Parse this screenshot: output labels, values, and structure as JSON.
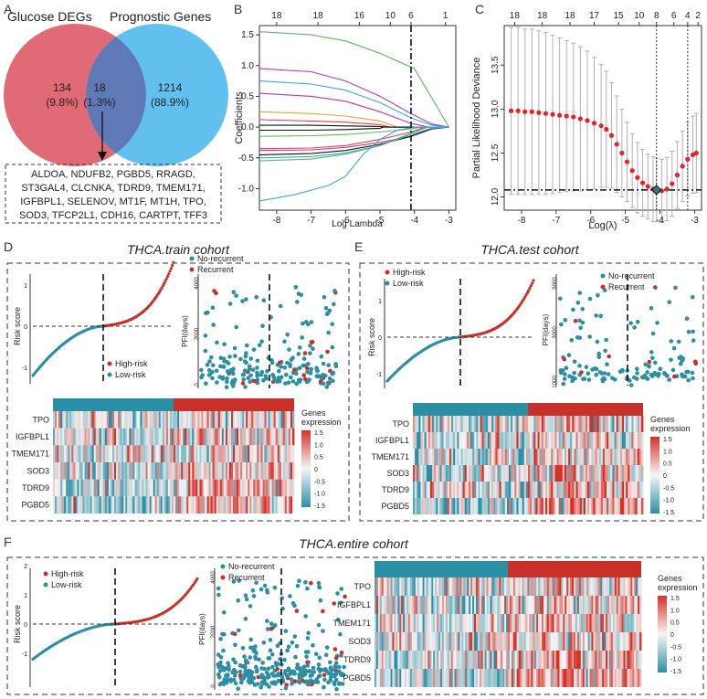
{
  "panel_labels": {
    "a": "A",
    "b": "B",
    "c": "C",
    "d": "D",
    "e": "E",
    "f": "F"
  },
  "venn": {
    "left_title": "Glucose DEGs",
    "right_title": "Prognostic Genes",
    "left_count": "134",
    "left_pct": "(9.8%)",
    "mid_count": "18",
    "mid_pct": "(1.3%)",
    "right_count": "1214",
    "right_pct": "(88.9%)",
    "genes": [
      "ALDOA, NDUFB2, PGBD5, RRAGD,",
      "ST3GAL4, CLCNKA, TDRD9, TMEM171,",
      "IGFBPL1, SELENOV, MT1F, MT1H, TPO,",
      "SOD3, TFCP2L1, CDH16, CARTPT, TFF3"
    ],
    "colors": {
      "left": "#e06a76",
      "right": "#62c0ef",
      "overlap": "#5e79b5"
    }
  },
  "chart_data": [
    {
      "panel": "B",
      "type": "line",
      "title": "",
      "xlabel": "Log Lambda",
      "ylabel": "Coefficients",
      "xlim": [
        -8.5,
        -2.8
      ],
      "ylim": [
        -1.35,
        1.65
      ],
      "xticks": [
        "-8",
        "-7",
        "-6",
        "-5",
        "-4",
        "-3"
      ],
      "xtick_values": [
        -8,
        -7,
        -6,
        -5,
        -4,
        -3
      ],
      "yticks": [
        "-1.0",
        "-0.5",
        "0.0",
        "0.5",
        "1.0",
        "1.5"
      ],
      "ytick_values": [
        -1,
        -0.5,
        0,
        0.5,
        1,
        1.5
      ],
      "top_ticks": [
        "18",
        "18",
        "16",
        "10",
        "6",
        "1"
      ],
      "top_tick_values": [
        -8,
        -6.8,
        -5.6,
        -4.7,
        -4.1,
        -3.1
      ],
      "vline": -4.1,
      "series": [
        {
          "color": "#5cb85c",
          "values": [
            [
              -8.5,
              1.55
            ],
            [
              -7,
              1.5
            ],
            [
              -6,
              1.4
            ],
            [
              -5,
              1.2
            ],
            [
              -4,
              0.95
            ],
            [
              -3,
              0
            ]
          ]
        },
        {
          "color": "#c0399b",
          "values": [
            [
              -8.5,
              0.95
            ],
            [
              -7,
              0.9
            ],
            [
              -6,
              0.75
            ],
            [
              -5,
              0.5
            ],
            [
              -4.1,
              0.22
            ],
            [
              -3.5,
              0.05
            ],
            [
              -3,
              0
            ]
          ]
        },
        {
          "color": "#3aa7d6",
          "values": [
            [
              -8.5,
              0.75
            ],
            [
              -7,
              0.7
            ],
            [
              -6,
              0.6
            ],
            [
              -5,
              0.4
            ],
            [
              -4.1,
              0.15
            ],
            [
              -3.5,
              0.03
            ],
            [
              -3,
              0
            ]
          ]
        },
        {
          "color": "#c0399b",
          "values": [
            [
              -8.5,
              0.55
            ],
            [
              -7,
              0.5
            ],
            [
              -6,
              0.42
            ],
            [
              -5,
              0.25
            ],
            [
              -4.1,
              0.06
            ],
            [
              -3.6,
              0
            ],
            [
              -3,
              0
            ]
          ]
        },
        {
          "color": "#e8a33d",
          "values": [
            [
              -8.5,
              0.25
            ],
            [
              -7,
              0.22
            ],
            [
              -6,
              0.18
            ],
            [
              -5,
              0.1
            ],
            [
              -4.5,
              0
            ],
            [
              -3,
              0
            ]
          ]
        },
        {
          "color": "#e04050",
          "values": [
            [
              -8.5,
              0.12
            ],
            [
              -7,
              0.1
            ],
            [
              -6,
              0.08
            ],
            [
              -5,
              0.04
            ],
            [
              -4.7,
              0
            ],
            [
              -3,
              0
            ]
          ]
        },
        {
          "color": "#111111",
          "values": [
            [
              -8.5,
              0.03
            ],
            [
              -7,
              0.03
            ],
            [
              -6,
              0.02
            ],
            [
              -5,
              0.01
            ],
            [
              -4.8,
              0
            ],
            [
              -3,
              0
            ]
          ]
        },
        {
          "color": "#111111",
          "values": [
            [
              -8.5,
              -0.05
            ],
            [
              -7,
              -0.05
            ],
            [
              -6,
              -0.04
            ],
            [
              -5,
              -0.02
            ],
            [
              -4.9,
              0
            ],
            [
              -3,
              0
            ]
          ]
        },
        {
          "color": "#5cb85c",
          "values": [
            [
              -8.5,
              -0.15
            ],
            [
              -7,
              -0.14
            ],
            [
              -6,
              -0.12
            ],
            [
              -5,
              -0.08
            ],
            [
              -4.1,
              -0.03
            ],
            [
              -3.8,
              0
            ],
            [
              -3,
              0
            ]
          ]
        },
        {
          "color": "#e04050",
          "values": [
            [
              -8.5,
              -0.35
            ],
            [
              -7,
              -0.34
            ],
            [
              -6,
              -0.3
            ],
            [
              -5,
              -0.2
            ],
            [
              -4.1,
              -0.08
            ],
            [
              -3.7,
              0
            ],
            [
              -3,
              0
            ]
          ]
        },
        {
          "color": "#c0399b",
          "values": [
            [
              -8.5,
              -0.38
            ],
            [
              -7,
              -0.37
            ],
            [
              -6,
              -0.33
            ],
            [
              -5,
              -0.25
            ],
            [
              -4.1,
              -0.15
            ],
            [
              -3.5,
              -0.03
            ],
            [
              -3,
              0
            ]
          ]
        },
        {
          "color": "#111111",
          "values": [
            [
              -8.5,
              -0.45
            ],
            [
              -7,
              -0.43
            ],
            [
              -6,
              -0.38
            ],
            [
              -5,
              -0.28
            ],
            [
              -4.1,
              -0.15
            ],
            [
              -3.5,
              -0.03
            ],
            [
              -3,
              0
            ]
          ]
        },
        {
          "color": "#3aa7d6",
          "values": [
            [
              -8.5,
              -0.5
            ],
            [
              -7,
              -0.48
            ],
            [
              -6,
              -0.42
            ],
            [
              -5,
              -0.3
            ],
            [
              -4.1,
              -0.12
            ],
            [
              -3.5,
              -0.02
            ],
            [
              -3,
              0
            ]
          ]
        },
        {
          "color": "#5cb85c",
          "values": [
            [
              -8.5,
              -0.55
            ],
            [
              -7,
              -0.52
            ],
            [
              -6,
              -0.44
            ],
            [
              -5,
              -0.3
            ],
            [
              -4.1,
              -0.1
            ],
            [
              -3.6,
              0
            ],
            [
              -3,
              0
            ]
          ]
        },
        {
          "color": "#3aa7d6",
          "values": [
            [
              -8.5,
              -1.2
            ],
            [
              -7.5,
              -1.1
            ],
            [
              -6.5,
              -0.95
            ],
            [
              -6,
              -0.8
            ],
            [
              -5.5,
              -0.45
            ],
            [
              -5,
              -0.2
            ],
            [
              -4.5,
              -0.05
            ],
            [
              -4,
              0
            ],
            [
              -3,
              0
            ]
          ]
        }
      ]
    },
    {
      "panel": "C",
      "type": "scatter",
      "xlabel": "Log(λ)",
      "ylabel": "Partial Likelihood Deviance",
      "xlim": [
        -8.5,
        -2.8
      ],
      "ylim": [
        11.85,
        13.95
      ],
      "xticks": [
        "-8",
        "-7",
        "-6",
        "-5",
        "-4",
        "-3"
      ],
      "xtick_values": [
        -8,
        -7,
        -6,
        -5,
        -4,
        -3
      ],
      "yticks": [
        "12.0",
        "12.5",
        "13.0",
        "13.5"
      ],
      "ytick_values": [
        12,
        12.5,
        13,
        13.5
      ],
      "top_ticks": [
        "18",
        "18",
        "18",
        "17",
        "15",
        "10",
        "8",
        "6",
        "4",
        "2"
      ],
      "top_tick_values": [
        -8.2,
        -7.4,
        -6.6,
        -5.9,
        -5.2,
        -4.6,
        -4.1,
        -3.6,
        -3.2,
        -2.9
      ],
      "vlines": [
        -4.1,
        -3.2
      ],
      "hline": 12.08,
      "optimum": [
        -4.1,
        12.08
      ],
      "values": [
        [
          -8.3,
          12.98
        ],
        [
          -8.1,
          12.98
        ],
        [
          -7.9,
          12.97
        ],
        [
          -7.7,
          12.97
        ],
        [
          -7.5,
          12.96
        ],
        [
          -7.3,
          12.95
        ],
        [
          -7.1,
          12.94
        ],
        [
          -6.9,
          12.93
        ],
        [
          -6.7,
          12.92
        ],
        [
          -6.5,
          12.91
        ],
        [
          -6.3,
          12.89
        ],
        [
          -6.1,
          12.87
        ],
        [
          -5.9,
          12.84
        ],
        [
          -5.7,
          12.81
        ],
        [
          -5.55,
          12.77
        ],
        [
          -5.4,
          12.7
        ],
        [
          -5.25,
          12.6
        ],
        [
          -5.1,
          12.5
        ],
        [
          -4.95,
          12.4
        ],
        [
          -4.8,
          12.3
        ],
        [
          -4.65,
          12.22
        ],
        [
          -4.5,
          12.16
        ],
        [
          -4.35,
          12.12
        ],
        [
          -4.2,
          12.09
        ],
        [
          -4.1,
          12.08
        ],
        [
          -3.95,
          12.07
        ],
        [
          -3.8,
          12.09
        ],
        [
          -3.65,
          12.15
        ],
        [
          -3.5,
          12.25
        ],
        [
          -3.35,
          12.35
        ],
        [
          -3.2,
          12.43
        ],
        [
          -3.05,
          12.48
        ],
        [
          -2.95,
          12.5
        ]
      ],
      "err": [
        0.95,
        0.95,
        0.94,
        0.94,
        0.93,
        0.92,
        0.9,
        0.88,
        0.86,
        0.84,
        0.82,
        0.79,
        0.75,
        0.7,
        0.66,
        0.6,
        0.55,
        0.5,
        0.45,
        0.42,
        0.4,
        0.38,
        0.37,
        0.37,
        0.36,
        0.36,
        0.36,
        0.37,
        0.38,
        0.4,
        0.42,
        0.44,
        0.45
      ]
    }
  ],
  "cohorts": {
    "train": {
      "title": "THCA.train cohort",
      "risk_ylabel": "Risk score",
      "risk_yticks": [
        "1",
        "0",
        "-1"
      ],
      "risk_legend": [
        "High-risk",
        "Low-risk"
      ],
      "pfi_ylabel": "PFI(days)",
      "pfi_yticks": [
        "4000",
        "2000",
        "0"
      ],
      "pfi_legend": [
        "No-recurrent",
        "Recurrent"
      ],
      "heatmap_genes": [
        "TPO",
        "IGFBPL1",
        "TMEM171",
        "SOD3",
        "TDRD9",
        "PGBD5"
      ],
      "legend_title": [
        "Genes",
        "expression"
      ],
      "legend_ticks": [
        "1.5",
        "1.0",
        "0.5",
        "0",
        "-0.5",
        "-1.0",
        "-1.5"
      ]
    },
    "test": {
      "title": "THCA.test cohort",
      "risk_ylabel": "Risk score",
      "risk_yticks": [
        "1",
        "0",
        "-1"
      ],
      "risk_legend": [
        "High-risk",
        "Low-risk"
      ],
      "pfi_ylabel": "PFI(days)",
      "pfi_yticks": [
        "5000",
        "3000",
        "1000"
      ],
      "pfi_legend": [
        "No-recurrent",
        "Recurrent"
      ],
      "heatmap_genes": [
        "TPO",
        "IGFBPL1",
        "TMEM171",
        "SOD3",
        "TDRD9",
        "PGBD5"
      ],
      "legend_title": [
        "Genes",
        "expression"
      ],
      "legend_ticks": [
        "1.5",
        "1.0",
        "0.5",
        "0",
        "-0.5",
        "-1.0",
        "-1.5"
      ]
    },
    "entire": {
      "title": "THCA.entire cohort",
      "risk_ylabel": "Risk score",
      "risk_yticks": [
        "2",
        "1",
        "0",
        "-1"
      ],
      "risk_legend": [
        "High-risk",
        "Low-risk"
      ],
      "pfi_ylabel": "PFI(days)",
      "pfi_yticks": [
        "4000",
        "2000",
        "0"
      ],
      "pfi_legend": [
        "No-recurrent",
        "Recurrent"
      ],
      "heatmap_genes": [
        "TPO",
        "IGFBPL1",
        "TMEM171",
        "SOD3",
        "TDRD9",
        "PGBD5"
      ],
      "legend_title": [
        "Genes",
        "expression"
      ],
      "legend_ticks": [
        "1.5",
        "1.0",
        "0.5",
        "0",
        "-0.5",
        "-1.0",
        "-1.5"
      ]
    }
  },
  "colors": {
    "high_risk": "#c8312a",
    "low_risk": "#2a8fa5",
    "heat_high": "#d73027",
    "heat_mid": "#f5f5f5",
    "heat_low": "#2c8fa5"
  }
}
